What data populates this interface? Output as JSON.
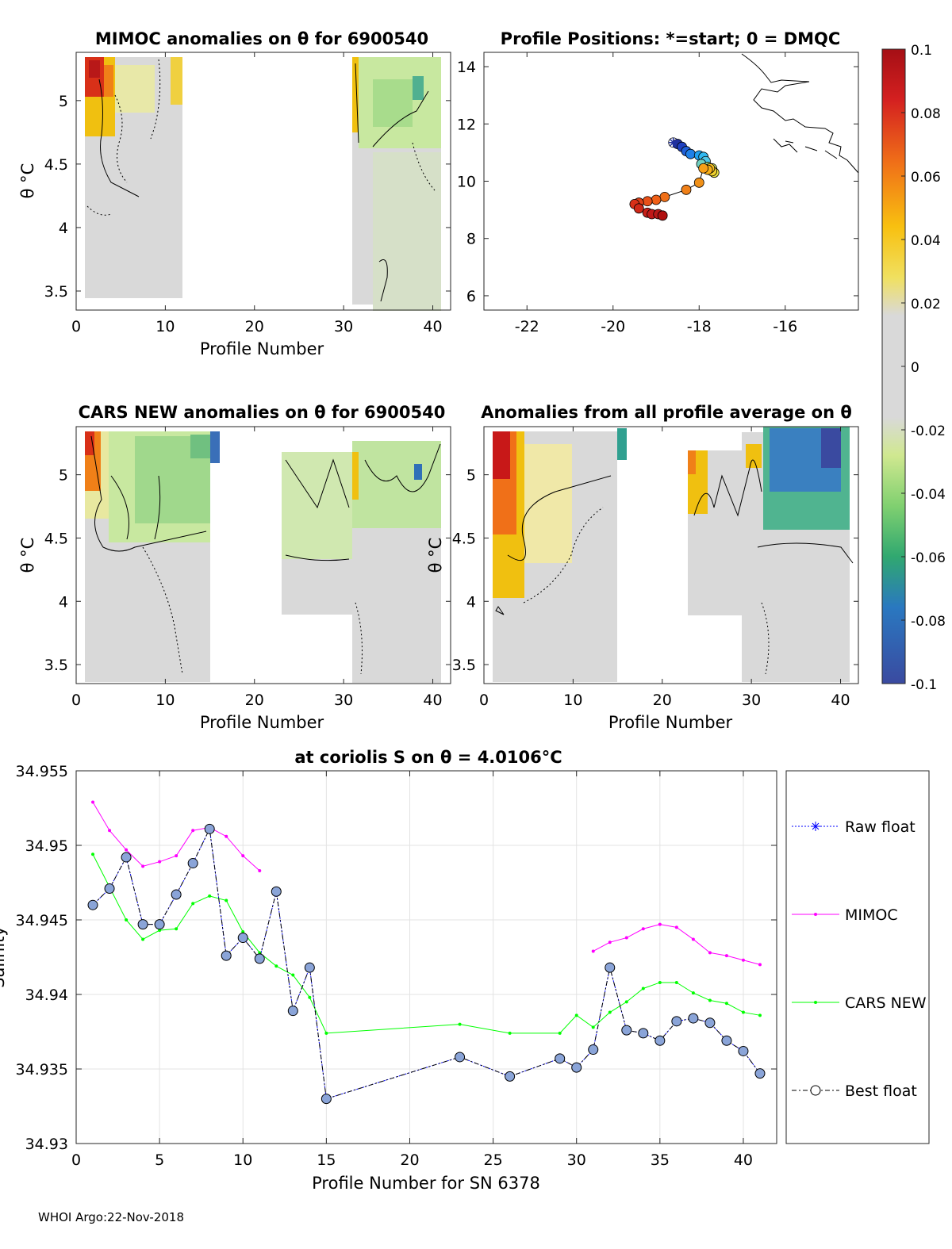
{
  "footer_text": "WHOI Argo:22-Nov-2018",
  "colors": {
    "raw_float": "#0000ff",
    "mimoc": "#ff00ff",
    "cars_new": "#00ff00",
    "best_float": "#000000",
    "marker_fill": "#8aa4d8"
  },
  "chart_data": [
    {
      "id": "mimoc_anom",
      "type": "heatmap",
      "title": "MIMOC anomalies on θ  for 6900540",
      "xlabel": "Profile Number",
      "ylabel": "θ °C",
      "xlim": [
        0,
        42
      ],
      "ylim": [
        3.35,
        5.38
      ],
      "xticks": [
        0,
        10,
        20,
        30,
        40
      ],
      "yticks": [
        3.5,
        4,
        4.5,
        5
      ],
      "yticklabels": [
        "3.5",
        "4",
        "4.5",
        "5"
      ],
      "data_ranges": [
        {
          "profiles": [
            1,
            12
          ],
          "theta": [
            3.45,
            5.38
          ]
        },
        {
          "profiles": [
            31,
            41
          ],
          "theta": [
            3.41,
            5.38
          ]
        }
      ]
    },
    {
      "id": "positions",
      "type": "scatter",
      "title": "Profile Positions: *=start; 0 = DMQC",
      "xlim": [
        -23,
        -14.3
      ],
      "ylim": [
        5.5,
        14.5
      ],
      "xticks": [
        -22,
        -20,
        -18,
        -16
      ],
      "yticks": [
        6,
        8,
        10,
        12,
        14
      ],
      "lon": [
        -18.6,
        -18.5,
        -18.4,
        -18.3,
        -18.2,
        -18.0,
        -17.9,
        -17.85,
        -17.95,
        -17.8,
        -17.7,
        -17.65,
        -17.7,
        -17.75,
        -17.8,
        -17.9,
        -18.0,
        -18.3,
        -18.8,
        -19.0,
        -19.2,
        -19.4,
        -19.5,
        -19.4,
        -19.2,
        -19.1,
        -18.95,
        -18.85
      ],
      "lat": [
        11.35,
        11.3,
        11.2,
        11.05,
        10.95,
        10.9,
        10.85,
        10.7,
        10.6,
        10.5,
        10.45,
        10.3,
        10.35,
        10.45,
        10.4,
        10.45,
        9.95,
        9.7,
        9.45,
        9.35,
        9.3,
        9.25,
        9.2,
        9.05,
        8.9,
        8.85,
        8.85,
        8.8
      ]
    },
    {
      "id": "cars_anom",
      "type": "heatmap",
      "title": "CARS NEW anomalies on θ for 6900540",
      "xlabel": "Profile Number",
      "ylabel": "θ °C",
      "xlim": [
        0,
        42
      ],
      "ylim": [
        3.35,
        5.38
      ],
      "xticks": [
        0,
        10,
        20,
        30,
        40
      ],
      "yticks": [
        3.5,
        4,
        4.5,
        5
      ],
      "yticklabels": [
        "3.5",
        "4",
        "4.5",
        "5"
      ],
      "data_ranges": [
        {
          "profiles": [
            1,
            15
          ],
          "theta": [
            3.35,
            5.38
          ]
        },
        {
          "profiles": [
            23,
            41
          ],
          "theta": [
            3.35,
            5.25
          ]
        }
      ]
    },
    {
      "id": "avg_anom",
      "type": "heatmap",
      "title": "Anomalies from all profile average on θ",
      "xlabel": "Profile Number",
      "ylabel": "θ °C",
      "xlim": [
        0,
        42
      ],
      "ylim": [
        3.35,
        5.38
      ],
      "xticks": [
        0,
        10,
        20,
        30,
        40
      ],
      "yticks": [
        3.5,
        4,
        4.5,
        5
      ],
      "yticklabels": [
        "3.5",
        "4",
        "4.5",
        "5"
      ],
      "data_ranges": [
        {
          "profiles": [
            1,
            15
          ],
          "theta": [
            3.35,
            5.38
          ]
        },
        {
          "profiles": [
            23,
            41
          ],
          "theta": [
            3.35,
            5.38
          ]
        }
      ]
    },
    {
      "id": "colorbar",
      "type": "colorbar",
      "range": [
        -0.1,
        0.1
      ],
      "ticks": [
        0.1,
        0.08,
        0.06,
        0.04,
        0.02,
        0,
        -0.02,
        -0.04,
        -0.06,
        -0.08,
        -0.1
      ],
      "ticklabels": [
        "0.1",
        "0.08",
        "0.06",
        "0.04",
        "0.02",
        "0",
        "-0.02",
        "-0.04",
        "-0.06",
        "-0.08",
        "-0.1"
      ]
    },
    {
      "id": "salinity",
      "type": "line",
      "title": "at coriolis S on θ = 4.0106°C",
      "xlabel": "Profile Number for SN 6378",
      "ylabel": "Salinity",
      "xlim": [
        0,
        42
      ],
      "ylim": [
        34.93,
        34.955
      ],
      "xticks": [
        0,
        5,
        10,
        15,
        20,
        25,
        30,
        35,
        40
      ],
      "yticks": [
        34.93,
        34.935,
        34.94,
        34.945,
        34.95,
        34.955
      ],
      "yticklabels": [
        "34.93",
        "34.935",
        "34.94",
        "34.945",
        "34.95",
        "34.955"
      ],
      "grid": true,
      "legend_position": "right",
      "series": [
        {
          "name": "Raw float",
          "x": [
            1,
            2,
            3,
            4,
            5,
            6,
            7,
            8,
            9,
            10,
            11,
            12,
            13,
            14,
            15,
            23,
            26,
            29,
            30,
            31,
            32,
            33,
            34,
            35,
            36,
            37,
            38,
            39,
            40,
            41
          ],
          "values": [
            34.946,
            34.9471,
            34.9492,
            34.9447,
            34.9447,
            34.9467,
            34.9488,
            34.9511,
            34.9426,
            34.9438,
            34.9424,
            34.9469,
            34.9389,
            34.9418,
            34.933,
            34.9358,
            34.9345,
            34.9357,
            34.9351,
            34.9363,
            34.9418,
            34.9376,
            34.9374,
            34.9369,
            34.9382,
            34.9384,
            34.9381,
            34.9369,
            34.9362,
            34.9347
          ]
        },
        {
          "name": "MIMOC",
          "x": [
            1,
            2,
            3,
            4,
            5,
            6,
            7,
            8,
            9,
            10,
            11,
            31,
            32,
            33,
            34,
            35,
            36,
            37,
            38,
            39,
            40,
            41
          ],
          "values": [
            34.9529,
            34.951,
            34.9497,
            34.9486,
            34.9489,
            34.9493,
            34.951,
            34.9512,
            34.9506,
            34.9493,
            34.9483,
            34.9429,
            34.9435,
            34.9438,
            34.9444,
            34.9447,
            34.9445,
            34.9437,
            34.9428,
            34.9426,
            34.9423,
            34.942
          ]
        },
        {
          "name": "CARS NEW",
          "x": [
            1,
            2,
            3,
            4,
            5,
            6,
            7,
            8,
            9,
            10,
            11,
            12,
            13,
            14,
            15,
            23,
            26,
            29,
            30,
            31,
            32,
            33,
            34,
            35,
            36,
            37,
            38,
            39,
            40,
            41
          ],
          "values": [
            34.9494,
            34.9472,
            34.945,
            34.9437,
            34.9443,
            34.9444,
            34.9461,
            34.9466,
            34.9463,
            34.9442,
            34.9428,
            34.9419,
            34.9413,
            34.9398,
            34.9374,
            34.938,
            34.9374,
            34.9374,
            34.9386,
            34.9378,
            34.9388,
            34.9395,
            34.9404,
            34.9408,
            34.9408,
            34.9401,
            34.9396,
            34.9394,
            34.9388,
            34.9386
          ]
        },
        {
          "name": "Best float",
          "x": [
            1,
            2,
            3,
            4,
            5,
            6,
            7,
            8,
            9,
            10,
            11,
            12,
            13,
            14,
            15,
            23,
            26,
            29,
            30,
            31,
            32,
            33,
            34,
            35,
            36,
            37,
            38,
            39,
            40,
            41
          ],
          "values": [
            34.946,
            34.9471,
            34.9492,
            34.9447,
            34.9447,
            34.9467,
            34.9488,
            34.9511,
            34.9426,
            34.9438,
            34.9424,
            34.9469,
            34.9389,
            34.9418,
            34.933,
            34.9358,
            34.9345,
            34.9357,
            34.9351,
            34.9363,
            34.9418,
            34.9376,
            34.9374,
            34.9369,
            34.9382,
            34.9384,
            34.9381,
            34.9369,
            34.9362,
            34.9347
          ]
        }
      ]
    }
  ]
}
